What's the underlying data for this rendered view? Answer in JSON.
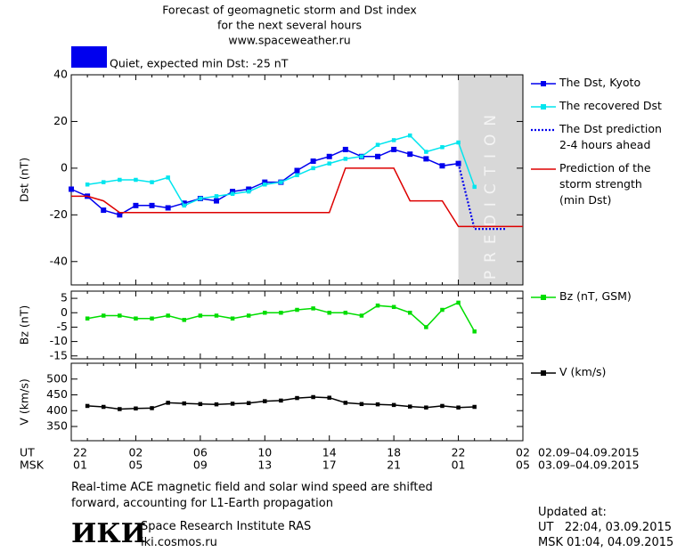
{
  "header": {
    "title": "Forecast of geomagnetic storm and Dst index",
    "subtitle": "for the next several hours",
    "site": "www.spaceweather.ru"
  },
  "status": {
    "label": "Quiet, expected min Dst: -25 nT",
    "color": "#0000ee"
  },
  "time_axis": {
    "ut_label": "UT",
    "msk_label": "MSK",
    "ut": [
      "22",
      "02",
      "06",
      "10",
      "14",
      "18",
      "22",
      "02"
    ],
    "msk": [
      "01",
      "05",
      "09",
      "13",
      "17",
      "21",
      "01",
      "05"
    ],
    "ut_range": "02.09–04.09.2015",
    "msk_range": "03.09–04.09.2015"
  },
  "chart_data": [
    {
      "type": "line",
      "y_label": "Dst (nT)",
      "ylim": [
        -50,
        40
      ],
      "yticks": [
        40,
        20,
        0,
        -20,
        -40
      ],
      "prediction_label": "PREDICTION",
      "prediction_start": 24,
      "series": [
        {
          "name": "The Dst, Kyoto",
          "color": "#0000ee",
          "marker": "square",
          "values": [
            -9,
            -12,
            -18,
            -20,
            -16,
            -16,
            -17,
            -15,
            -13,
            -14,
            -10,
            -9,
            -6,
            -6,
            -1,
            3,
            5,
            8,
            5,
            5,
            8,
            6,
            4,
            1,
            2,
            null,
            null,
            null,
            null
          ]
        },
        {
          "name": "The recovered Dst",
          "color": "#00e5ee",
          "marker": "square-small",
          "values": [
            null,
            -7,
            -6,
            -5,
            -5,
            -6,
            -4,
            -16,
            -13,
            -12,
            -11,
            -10,
            -7,
            -6,
            -3,
            0,
            2,
            4,
            5,
            10,
            12,
            14,
            7,
            9,
            11,
            -8,
            null,
            null,
            null
          ]
        },
        {
          "name": "The Dst prediction\n2-4 hours ahead",
          "color": "#0000ee",
          "dash": "dotted",
          "values": [
            null,
            null,
            null,
            null,
            null,
            null,
            null,
            null,
            null,
            null,
            null,
            null,
            null,
            null,
            null,
            null,
            null,
            null,
            null,
            null,
            null,
            null,
            null,
            null,
            2,
            -26,
            -26,
            -26,
            null
          ]
        },
        {
          "name": "Prediction of the\nstorm strength\n(min Dst)",
          "color": "#dd0000",
          "values": [
            -12,
            -12,
            -14,
            -19,
            -19,
            -19,
            -19,
            -19,
            -19,
            -19,
            -19,
            -19,
            -19,
            -19,
            -19,
            -19,
            -19,
            0,
            0,
            0,
            0,
            -14,
            -14,
            -14,
            -25,
            -25,
            -25,
            -25,
            -25
          ]
        }
      ]
    },
    {
      "type": "line",
      "y_label": "Bz (nT)",
      "ylim": [
        -16,
        7.5
      ],
      "yticks": [
        5,
        0,
        -5,
        -10,
        -15
      ],
      "series": [
        {
          "name": "Bz (nT, GSM)",
          "color": "#00dd00",
          "marker": "square-small",
          "values": [
            null,
            -2,
            -1,
            -1,
            -2,
            -2,
            -1,
            -2.5,
            -1,
            -1,
            -2,
            -1,
            0,
            0,
            1,
            1.5,
            0,
            0,
            -1,
            2.5,
            2,
            0,
            -5,
            1,
            3.5,
            -6.5,
            null,
            null,
            null
          ]
        }
      ]
    },
    {
      "type": "line",
      "y_label": "V (km/s)",
      "ylim": [
        305,
        550
      ],
      "yticks": [
        500,
        450,
        400,
        350
      ],
      "series": [
        {
          "name": "V (km/s)",
          "color": "#000000",
          "marker": "square-small",
          "values": [
            null,
            415,
            412,
            405,
            407,
            408,
            425,
            423,
            421,
            420,
            422,
            424,
            430,
            432,
            440,
            443,
            441,
            425,
            421,
            420,
            418,
            413,
            410,
            415,
            410,
            412,
            null,
            null,
            null
          ]
        }
      ]
    }
  ],
  "footer": {
    "note": "Real-time ACE magnetic field and solar wind speed are shifted\nforward, accounting for L1-Earth propagation",
    "logo": "ИКИ",
    "institute": "Space Research Institute RAS",
    "url": "iki.cosmos.ru",
    "updated": "Updated at:",
    "updated_ut": "UT   22:04, 03.09.2015",
    "updated_msk": "MSK 01:04, 04.09.2015"
  }
}
